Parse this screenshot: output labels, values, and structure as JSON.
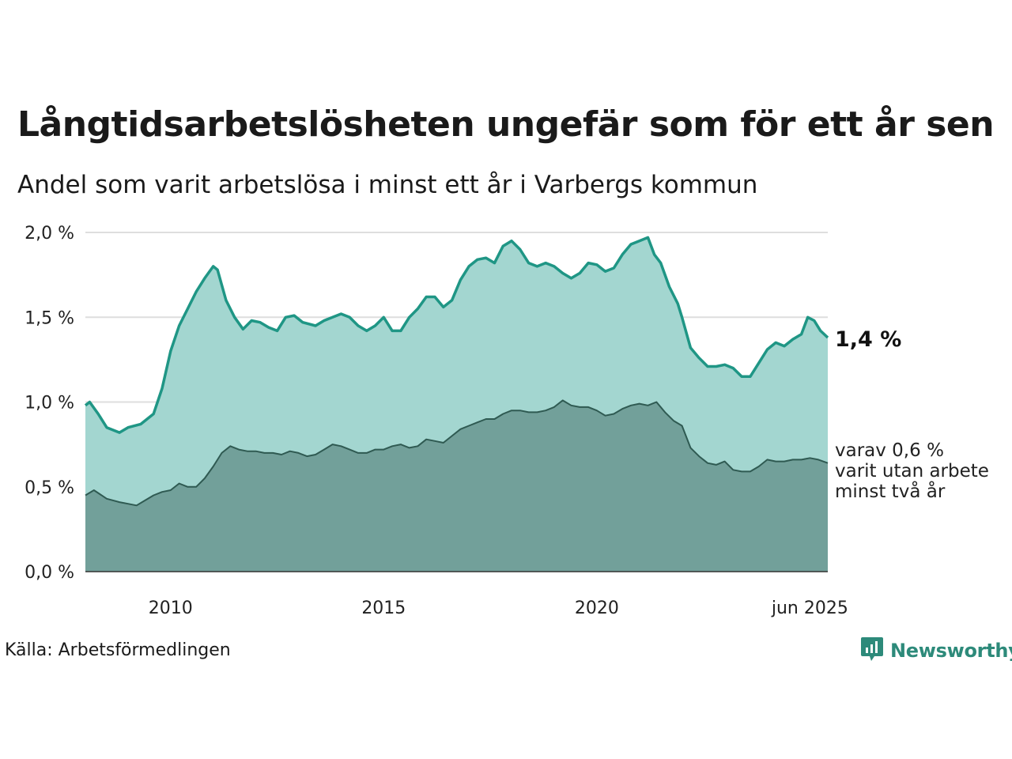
{
  "chart_data": {
    "type": "area",
    "title": "Långtidsarbetslösheten ungefär som för ett år sen",
    "subtitle": "Andel som varit arbetslösa i minst ett år i Varbergs kommun",
    "ylim": [
      0,
      2.0
    ],
    "y_ticks": [
      "0,0 %",
      "0,5 %",
      "1,0 %",
      "1,5 %",
      "2,0 %"
    ],
    "y_tick_values": [
      0,
      0.5,
      1.0,
      1.5,
      2.0
    ],
    "x_ticks": [
      "2010",
      "2015",
      "2020",
      "jun 2025"
    ],
    "x_tick_values": [
      2010.0,
      2015.0,
      2020.0,
      2025.0
    ],
    "x_start": 2008.0,
    "x_end": 2025.42,
    "grid": true,
    "series": [
      {
        "name": "1,4 %",
        "color": "#1f9685",
        "fill": "#a3d6d0",
        "points": [
          [
            2008.0,
            0.98
          ],
          [
            2008.1,
            1.0
          ],
          [
            2008.3,
            0.93
          ],
          [
            2008.5,
            0.85
          ],
          [
            2008.8,
            0.82
          ],
          [
            2009.0,
            0.85
          ],
          [
            2009.3,
            0.87
          ],
          [
            2009.6,
            0.93
          ],
          [
            2009.8,
            1.08
          ],
          [
            2010.0,
            1.3
          ],
          [
            2010.2,
            1.45
          ],
          [
            2010.4,
            1.55
          ],
          [
            2010.6,
            1.65
          ],
          [
            2010.8,
            1.73
          ],
          [
            2011.0,
            1.8
          ],
          [
            2011.1,
            1.78
          ],
          [
            2011.3,
            1.6
          ],
          [
            2011.5,
            1.5
          ],
          [
            2011.7,
            1.43
          ],
          [
            2011.9,
            1.48
          ],
          [
            2012.1,
            1.47
          ],
          [
            2012.3,
            1.44
          ],
          [
            2012.5,
            1.42
          ],
          [
            2012.7,
            1.5
          ],
          [
            2012.9,
            1.51
          ],
          [
            2013.1,
            1.47
          ],
          [
            2013.4,
            1.45
          ],
          [
            2013.6,
            1.48
          ],
          [
            2013.8,
            1.5
          ],
          [
            2014.0,
            1.52
          ],
          [
            2014.2,
            1.5
          ],
          [
            2014.4,
            1.45
          ],
          [
            2014.6,
            1.42
          ],
          [
            2014.8,
            1.45
          ],
          [
            2015.0,
            1.5
          ],
          [
            2015.2,
            1.42
          ],
          [
            2015.4,
            1.42
          ],
          [
            2015.6,
            1.5
          ],
          [
            2015.8,
            1.55
          ],
          [
            2016.0,
            1.62
          ],
          [
            2016.2,
            1.62
          ],
          [
            2016.4,
            1.56
          ],
          [
            2016.6,
            1.6
          ],
          [
            2016.8,
            1.72
          ],
          [
            2017.0,
            1.8
          ],
          [
            2017.2,
            1.84
          ],
          [
            2017.4,
            1.85
          ],
          [
            2017.6,
            1.82
          ],
          [
            2017.8,
            1.92
          ],
          [
            2018.0,
            1.95
          ],
          [
            2018.2,
            1.9
          ],
          [
            2018.4,
            1.82
          ],
          [
            2018.6,
            1.8
          ],
          [
            2018.8,
            1.82
          ],
          [
            2019.0,
            1.8
          ],
          [
            2019.2,
            1.76
          ],
          [
            2019.4,
            1.73
          ],
          [
            2019.6,
            1.76
          ],
          [
            2019.8,
            1.82
          ],
          [
            2020.0,
            1.81
          ],
          [
            2020.2,
            1.77
          ],
          [
            2020.4,
            1.79
          ],
          [
            2020.6,
            1.87
          ],
          [
            2020.8,
            1.93
          ],
          [
            2021.0,
            1.95
          ],
          [
            2021.2,
            1.97
          ],
          [
            2021.35,
            1.87
          ],
          [
            2021.5,
            1.82
          ],
          [
            2021.7,
            1.68
          ],
          [
            2021.9,
            1.58
          ],
          [
            2022.0,
            1.5
          ],
          [
            2022.2,
            1.32
          ],
          [
            2022.4,
            1.26
          ],
          [
            2022.6,
            1.21
          ],
          [
            2022.8,
            1.21
          ],
          [
            2023.0,
            1.22
          ],
          [
            2023.2,
            1.2
          ],
          [
            2023.4,
            1.15
          ],
          [
            2023.6,
            1.15
          ],
          [
            2023.8,
            1.23
          ],
          [
            2024.0,
            1.31
          ],
          [
            2024.2,
            1.35
          ],
          [
            2024.4,
            1.33
          ],
          [
            2024.6,
            1.37
          ],
          [
            2024.8,
            1.4
          ],
          [
            2024.95,
            1.5
          ],
          [
            2025.1,
            1.48
          ],
          [
            2025.25,
            1.42
          ],
          [
            2025.42,
            1.38
          ]
        ]
      },
      {
        "name": "varav 0,6 % varit utan arbete minst två år",
        "color": "#2f5a52",
        "fill": "#72a09a",
        "points": [
          [
            2008.0,
            0.45
          ],
          [
            2008.2,
            0.48
          ],
          [
            2008.5,
            0.43
          ],
          [
            2008.8,
            0.41
          ],
          [
            2009.0,
            0.4
          ],
          [
            2009.2,
            0.39
          ],
          [
            2009.4,
            0.42
          ],
          [
            2009.6,
            0.45
          ],
          [
            2009.8,
            0.47
          ],
          [
            2010.0,
            0.48
          ],
          [
            2010.2,
            0.52
          ],
          [
            2010.4,
            0.5
          ],
          [
            2010.6,
            0.5
          ],
          [
            2010.8,
            0.55
          ],
          [
            2011.0,
            0.62
          ],
          [
            2011.2,
            0.7
          ],
          [
            2011.4,
            0.74
          ],
          [
            2011.6,
            0.72
          ],
          [
            2011.8,
            0.71
          ],
          [
            2012.0,
            0.71
          ],
          [
            2012.2,
            0.7
          ],
          [
            2012.4,
            0.7
          ],
          [
            2012.6,
            0.69
          ],
          [
            2012.8,
            0.71
          ],
          [
            2013.0,
            0.7
          ],
          [
            2013.2,
            0.68
          ],
          [
            2013.4,
            0.69
          ],
          [
            2013.6,
            0.72
          ],
          [
            2013.8,
            0.75
          ],
          [
            2014.0,
            0.74
          ],
          [
            2014.2,
            0.72
          ],
          [
            2014.4,
            0.7
          ],
          [
            2014.6,
            0.7
          ],
          [
            2014.8,
            0.72
          ],
          [
            2015.0,
            0.72
          ],
          [
            2015.2,
            0.74
          ],
          [
            2015.4,
            0.75
          ],
          [
            2015.6,
            0.73
          ],
          [
            2015.8,
            0.74
          ],
          [
            2016.0,
            0.78
          ],
          [
            2016.2,
            0.77
          ],
          [
            2016.4,
            0.76
          ],
          [
            2016.6,
            0.8
          ],
          [
            2016.8,
            0.84
          ],
          [
            2017.0,
            0.86
          ],
          [
            2017.2,
            0.88
          ],
          [
            2017.4,
            0.9
          ],
          [
            2017.6,
            0.9
          ],
          [
            2017.8,
            0.93
          ],
          [
            2018.0,
            0.95
          ],
          [
            2018.2,
            0.95
          ],
          [
            2018.4,
            0.94
          ],
          [
            2018.6,
            0.94
          ],
          [
            2018.8,
            0.95
          ],
          [
            2019.0,
            0.97
          ],
          [
            2019.2,
            1.01
          ],
          [
            2019.4,
            0.98
          ],
          [
            2019.6,
            0.97
          ],
          [
            2019.8,
            0.97
          ],
          [
            2020.0,
            0.95
          ],
          [
            2020.2,
            0.92
          ],
          [
            2020.4,
            0.93
          ],
          [
            2020.6,
            0.96
          ],
          [
            2020.8,
            0.98
          ],
          [
            2021.0,
            0.99
          ],
          [
            2021.2,
            0.98
          ],
          [
            2021.4,
            1.0
          ],
          [
            2021.6,
            0.94
          ],
          [
            2021.8,
            0.89
          ],
          [
            2022.0,
            0.86
          ],
          [
            2022.2,
            0.73
          ],
          [
            2022.4,
            0.68
          ],
          [
            2022.6,
            0.64
          ],
          [
            2022.8,
            0.63
          ],
          [
            2023.0,
            0.65
          ],
          [
            2023.2,
            0.6
          ],
          [
            2023.4,
            0.59
          ],
          [
            2023.6,
            0.59
          ],
          [
            2023.8,
            0.62
          ],
          [
            2024.0,
            0.66
          ],
          [
            2024.2,
            0.65
          ],
          [
            2024.4,
            0.65
          ],
          [
            2024.6,
            0.66
          ],
          [
            2024.8,
            0.66
          ],
          [
            2025.0,
            0.67
          ],
          [
            2025.2,
            0.66
          ],
          [
            2025.42,
            0.64
          ]
        ]
      }
    ],
    "end_labels": {
      "total": "1,4 %",
      "sub_line1": "varav 0,6 %",
      "sub_line2": "varit utan arbete",
      "sub_line3": "minst två år"
    }
  },
  "footer": {
    "source": "Källa: Arbetsförmedlingen",
    "logo": "Newsworthy",
    "logo_icon": "newsworthy-logo-icon"
  }
}
